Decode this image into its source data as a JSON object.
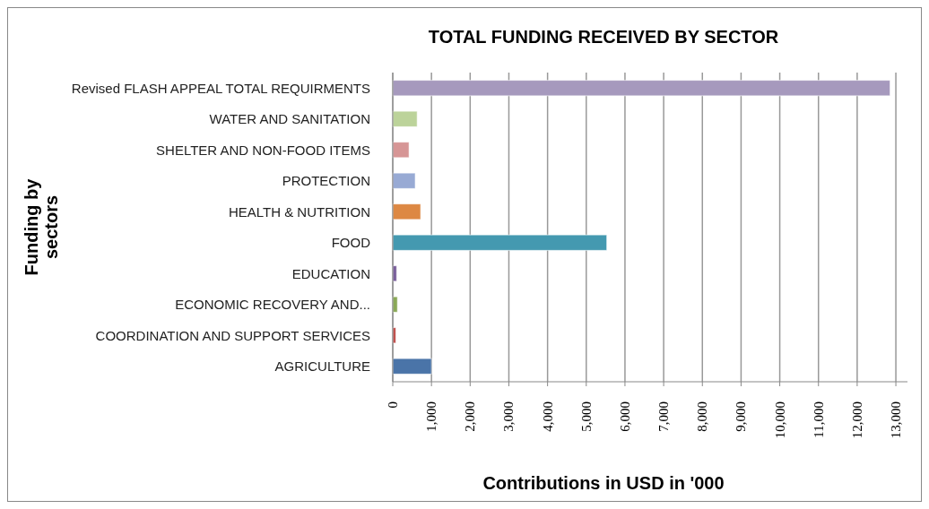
{
  "chart_data": {
    "type": "bar",
    "orientation": "horizontal",
    "title": "TOTAL FUNDING  RECEIVED BY SECTOR",
    "xlabel": "Contributions in USD in  '000",
    "ylabel": "Funding by sectors",
    "categories": [
      "Revised FLASH APPEAL TOTAL REQUIRMENTS",
      "WATER AND SANITATION",
      "SHELTER AND NON-FOOD ITEMS",
      "PROTECTION",
      "HEALTH & NUTRITION",
      "FOOD",
      "EDUCATION",
      "ECONOMIC RECOVERY AND...",
      "COORDINATION AND SUPPORT SERVICES",
      "AGRICULTURE"
    ],
    "values": [
      12850,
      630,
      420,
      580,
      720,
      5530,
      100,
      120,
      80,
      1000
    ],
    "colors": [
      "#a699bd",
      "#bcd39a",
      "#d69595",
      "#98aad4",
      "#dd8843",
      "#4499b0",
      "#7a5f9b",
      "#8aa957",
      "#c0504d",
      "#4a74a8"
    ],
    "xlim": [
      0,
      13300
    ],
    "xticks": [
      0,
      {
        "value": 1000,
        "label": "1,000"
      },
      {
        "value": 2000,
        "label": "2,000"
      },
      {
        "value": 3000,
        "label": "3,000"
      },
      {
        "value": 4000,
        "label": "4,000"
      },
      {
        "value": 5000,
        "label": "5,000"
      },
      {
        "value": 6000,
        "label": "6,000"
      },
      {
        "value": 7000,
        "label": "7,000"
      },
      {
        "value": 8000,
        "label": "8,000"
      },
      {
        "value": 9000,
        "label": "9,000"
      },
      {
        "value": 10000,
        "label": "10,000"
      },
      {
        "value": 11000,
        "label": "11,000"
      },
      {
        "value": 12000,
        "label": "12,000"
      },
      {
        "value": 13000,
        "label": "13,000"
      }
    ],
    "grid": "x"
  }
}
